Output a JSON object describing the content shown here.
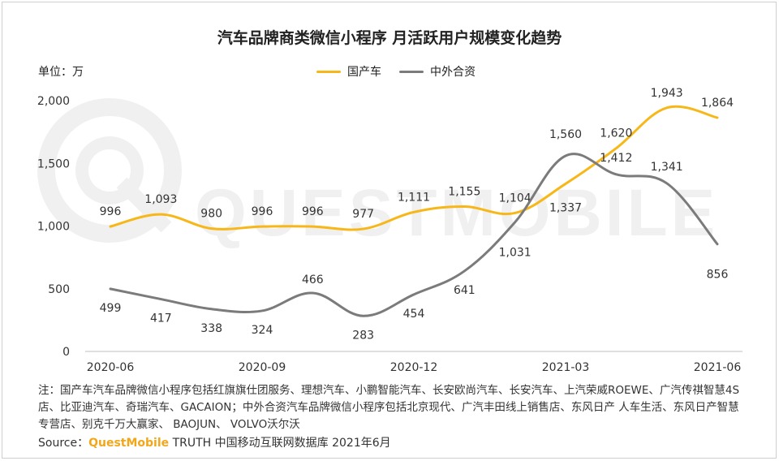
{
  "title": "汽车品牌商类微信小程序 月活跃用户规模变化趋势",
  "unit_label": "单位：万",
  "watermark": "QUESTMOBILE",
  "colors": {
    "domestic": "#f7b718",
    "jv": "#7b7b7b",
    "brand": "#f2a71b"
  },
  "chart_data": {
    "type": "line",
    "title": "汽车品牌商类微信小程序 月活跃用户规模变化趋势",
    "ylabel": "单位：万",
    "x_tick_labels": [
      "2020-06",
      "2020-09",
      "2020-12",
      "2021-03",
      "2021-06"
    ],
    "x_tick_indices": [
      0,
      3,
      6,
      9,
      12
    ],
    "ylim": [
      0,
      2000
    ],
    "y_ticks": [
      0,
      500,
      1000,
      1500,
      2000
    ],
    "y_tick_labels": [
      "0",
      "500",
      "1,000",
      "1,500",
      "2,000"
    ],
    "grid": false,
    "legend_position": "top-center",
    "smooth": true,
    "series": [
      {
        "name": "国产车",
        "color": "#f7b718",
        "values": [
          996,
          1093,
          980,
          996,
          996,
          977,
          1111,
          1155,
          1104,
          1337,
          1620,
          1943,
          1864
        ],
        "labels": [
          "996",
          "1,093",
          "980",
          "996",
          "996",
          "977",
          "1,111",
          "1,155",
          "1,104",
          "1,337",
          "1,620",
          "1,943",
          "1,864"
        ]
      },
      {
        "name": "中外合资",
        "color": "#7b7b7b",
        "values": [
          499,
          417,
          338,
          324,
          466,
          283,
          454,
          641,
          1031,
          1560,
          1412,
          1341,
          856
        ],
        "labels": [
          "499",
          "417",
          "338",
          "324",
          "466",
          "283",
          "454",
          "641",
          "1,031",
          "1,560",
          "1,412",
          "1,341",
          "856"
        ]
      }
    ]
  },
  "note": "注：国产车汽车品牌微信小程序包括红旗旗仕团服务、理想汽车、小鹏智能汽车、长安欧尚汽车、长安汽车、上汽荣威ROEWE、广汽传祺智慧4S店、比亚迪汽车、奇瑞汽车、GACAION；中外合资汽车品牌微信小程序包括北京现代、广汽丰田线上销售店、东风日产 人车生活、东风日产智慧专营店、别克千万大赢家、 BAOJUN、 VOLVO沃尔沃",
  "source": {
    "prefix": "Source：",
    "brand": "QuestMobile",
    "suffix": " TRUTH 中国移动互联网数据库 2021年6月"
  }
}
